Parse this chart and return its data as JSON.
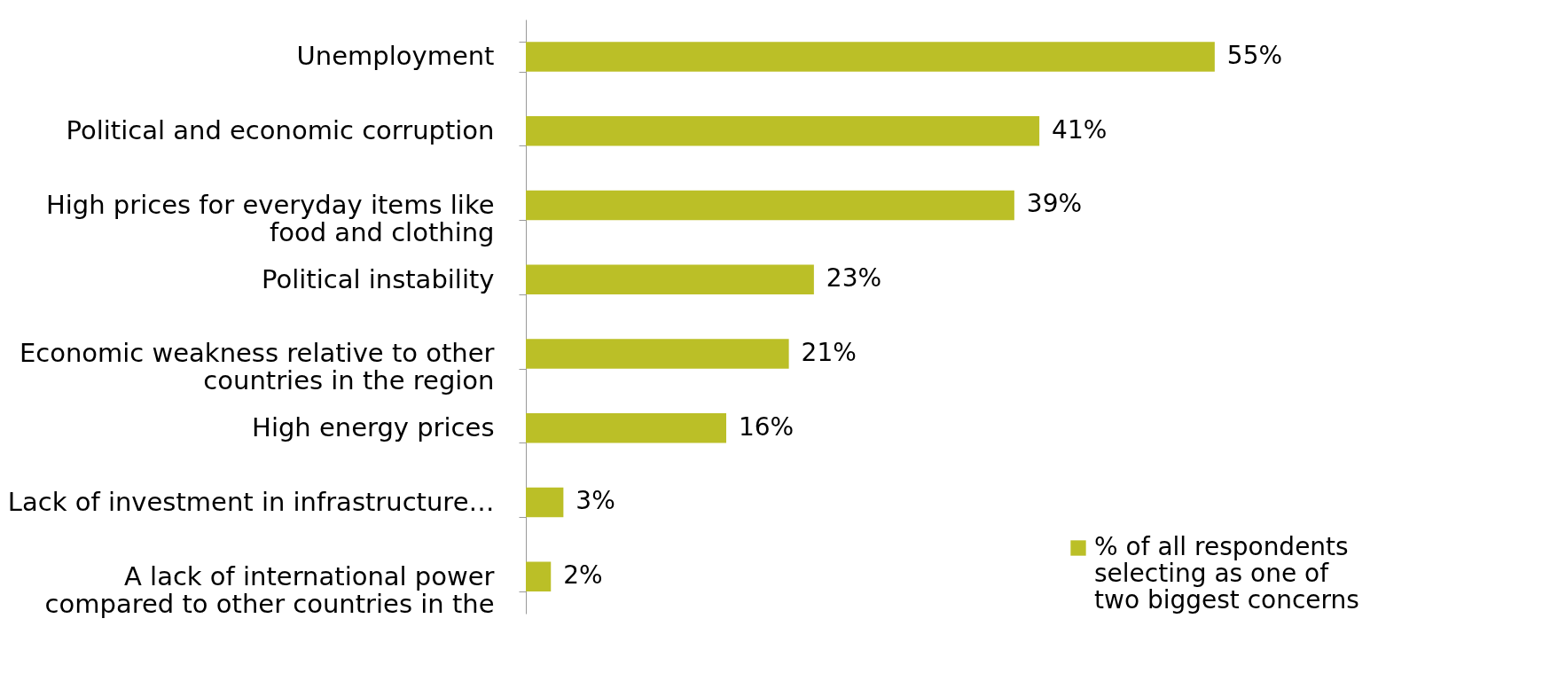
{
  "chart_data": {
    "type": "bar",
    "orientation": "horizontal",
    "categories": [
      "Unemployment",
      "Political and economic corruption",
      "High prices for everyday items like food and clothing",
      "Political instability",
      "Economic weakness relative to other countries in the region",
      "High energy prices",
      "Lack of investment in infrastructure…",
      "A lack of international power compared to other countries in the"
    ],
    "series": [
      {
        "name": "% of all respondents selecting as one of two biggest concerns",
        "color": "#bbbf27",
        "values": [
          55,
          41,
          39,
          23,
          21,
          16,
          3,
          2
        ],
        "value_labels": [
          "55%",
          "41%",
          "39%",
          "23%",
          "21%",
          "16%",
          "3%",
          "2%"
        ]
      }
    ],
    "legend": "bottom right"
  }
}
